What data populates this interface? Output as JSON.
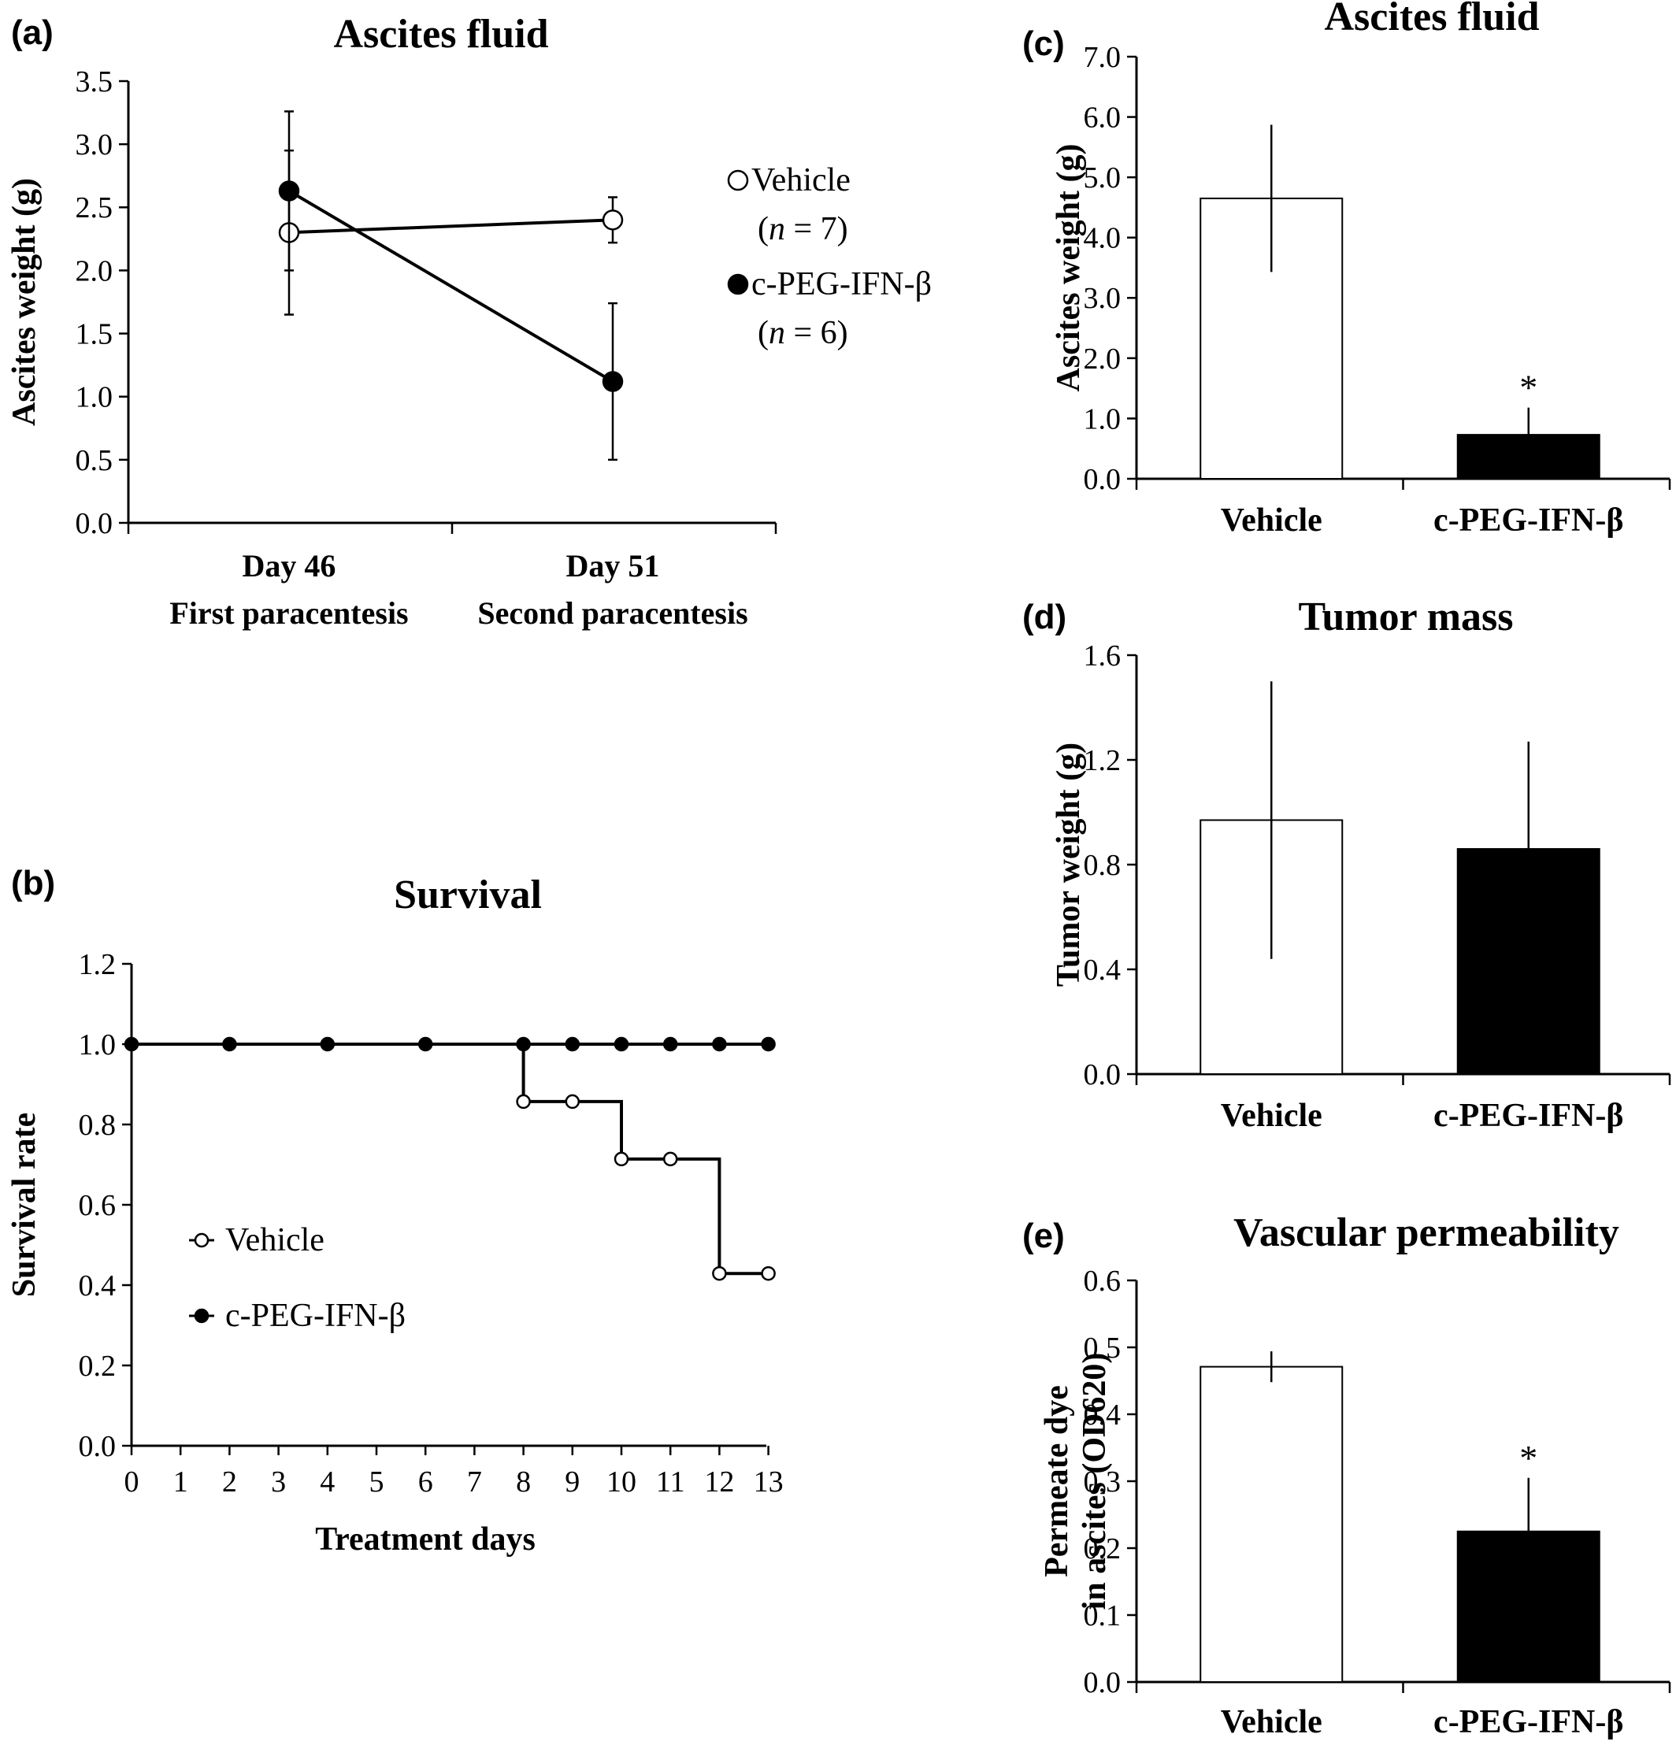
{
  "chart_data": [
    {
      "id": "a",
      "panel_label": "(a)",
      "type": "line",
      "title": "Ascites fluid",
      "ylabel": "Ascites weight (g)",
      "ylim": [
        0,
        3.5
      ],
      "yticks": [
        "0.0",
        "0.5",
        "1.0",
        "1.5",
        "2.0",
        "2.5",
        "3.0",
        "3.5"
      ],
      "categories": [
        {
          "line1": "Day 46",
          "line2": "First paracentesis"
        },
        {
          "line1": "Day 51",
          "line2": "Second paracentesis"
        }
      ],
      "series": [
        {
          "name": "Vehicle",
          "n_label": "(n = 7)",
          "n_italic": "n",
          "n_rest": " = 7)",
          "marker": "open",
          "values": [
            2.3,
            2.4
          ],
          "err": [
            0.65,
            0.18
          ]
        },
        {
          "name": "c-PEG-IFN-β",
          "n_label": "(n = 6)",
          "n_italic": "n",
          "n_rest": " = 6)",
          "marker": "filled",
          "values": [
            2.63,
            1.12
          ],
          "err": [
            0.63,
            0.62
          ]
        }
      ]
    },
    {
      "id": "b",
      "panel_label": "(b)",
      "type": "line",
      "title": "Survival",
      "xlabel": "Treatment days",
      "ylabel": "Survival rate",
      "ylim": [
        0,
        1.2
      ],
      "yticks": [
        "0.0",
        "0.2",
        "0.4",
        "0.6",
        "0.8",
        "1.0",
        "1.2"
      ],
      "xticks": [
        "0",
        "1",
        "2",
        "3",
        "4",
        "5",
        "6",
        "7",
        "8",
        "9",
        "10",
        "11",
        "12",
        "13"
      ],
      "series": [
        {
          "name": "Vehicle",
          "marker": "open",
          "x": [
            0,
            8,
            9,
            10,
            11,
            12,
            13
          ],
          "y": [
            1.0,
            0.857,
            0.857,
            0.714,
            0.714,
            0.429,
            0.429
          ],
          "step": true
        },
        {
          "name": "c-PEG-IFN-β",
          "marker": "filled",
          "x": [
            0,
            2,
            4,
            6,
            8,
            9,
            10,
            11,
            12,
            13
          ],
          "y": [
            1.0,
            1.0,
            1.0,
            1.0,
            1.0,
            1.0,
            1.0,
            1.0,
            1.0,
            1.0
          ],
          "step": false
        }
      ]
    },
    {
      "id": "c",
      "panel_label": "(c)",
      "type": "bar",
      "title": "Ascites fluid",
      "ylabel": "Ascites weight (g)",
      "ylim": [
        0,
        7
      ],
      "yticks": [
        "0.0",
        "1.0",
        "2.0",
        "3.0",
        "4.0",
        "5.0",
        "6.0",
        "7.0"
      ],
      "categories": [
        "Vehicle",
        "c-PEG-IFN-β"
      ],
      "values": [
        4.65,
        0.73
      ],
      "err": [
        1.22,
        0.45
      ],
      "fills": [
        "#ffffff",
        "#000000"
      ],
      "annotations": [
        "",
        "*"
      ]
    },
    {
      "id": "d",
      "panel_label": "(d)",
      "type": "bar",
      "title": "Tumor mass",
      "ylabel": "Tumor weight (g)",
      "ylim": [
        0,
        1.6
      ],
      "yticks": [
        "0.0",
        "0.4",
        "0.8",
        "1.2",
        "1.6"
      ],
      "categories": [
        "Vehicle",
        "c-PEG-IFN-β"
      ],
      "values": [
        0.97,
        0.86
      ],
      "err": [
        0.53,
        0.41
      ],
      "fills": [
        "#ffffff",
        "#000000"
      ],
      "annotations": [
        "",
        ""
      ]
    },
    {
      "id": "e",
      "panel_label": "(e)",
      "type": "bar",
      "title": "Vascular permeability",
      "ylabel": "Permeate dye in ascites (OD620)",
      "ylabel_lines": [
        "Permeate dye",
        "in ascites (OD620)"
      ],
      "ylim": [
        0,
        0.6
      ],
      "yticks": [
        "0.0",
        "0.1",
        "0.2",
        "0.3",
        "0.4",
        "0.5",
        "0.6"
      ],
      "categories": [
        "Vehicle",
        "c-PEG-IFN-β"
      ],
      "values": [
        0.471,
        0.225
      ],
      "err": [
        0.023,
        0.08
      ],
      "fills": [
        "#ffffff",
        "#000000"
      ],
      "annotations": [
        "",
        "*"
      ]
    }
  ]
}
